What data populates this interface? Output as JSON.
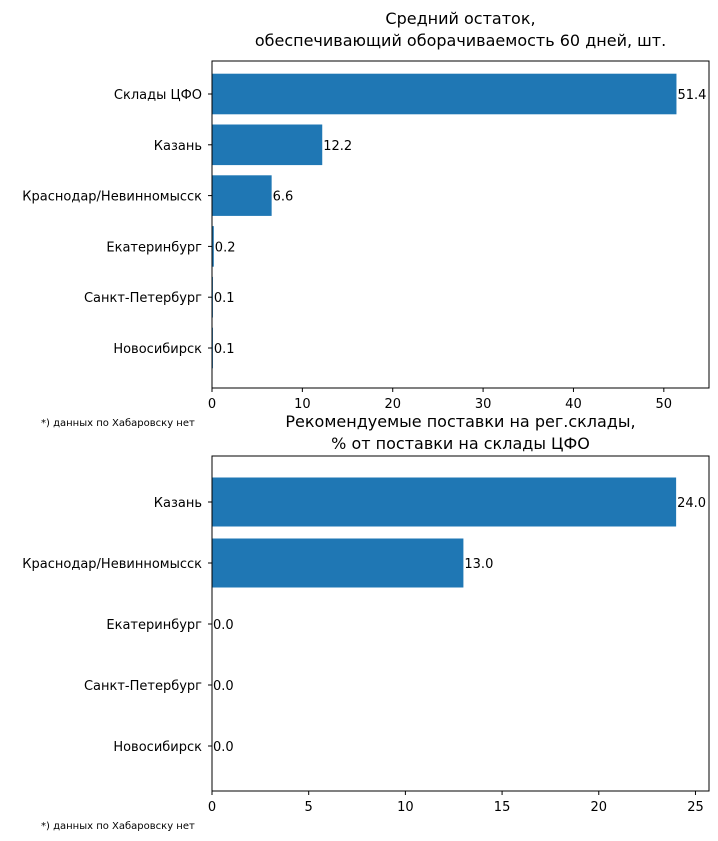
{
  "chart_data": [
    {
      "type": "bar",
      "orientation": "horizontal",
      "title": "Средний остаток,\nобеспечивающий оборачиваемость 60 дней, шт.",
      "categories": [
        "Склады ЦФО",
        "Казань",
        "Краснодар/Невинномысск",
        "Екатеринбург",
        "Санкт-Петербург",
        "Новосибирск"
      ],
      "values": [
        51.4,
        12.2,
        6.6,
        0.2,
        0.1,
        0.1
      ],
      "value_labels": [
        "51.4",
        "12.2",
        "6.6",
        "0.2",
        "0.1",
        "0.1"
      ],
      "xlim": [
        0,
        55
      ],
      "xticks": [
        0,
        10,
        20,
        30,
        40,
        50
      ],
      "color": "#1f77b4",
      "footnote": "*) данных по Хабаровску нет"
    },
    {
      "type": "bar",
      "orientation": "horizontal",
      "title": "Рекомендуемые поставки на рег.склады,\n% от поставки на склады ЦФО",
      "categories": [
        "Казань",
        "Краснодар/Невинномысск",
        "Екатеринбург",
        "Санкт-Петербург",
        "Новосибирск"
      ],
      "values": [
        24.0,
        13.0,
        0.0,
        0.0,
        0.0
      ],
      "value_labels": [
        "24.0",
        "13.0",
        "0.0",
        "0.0",
        "0.0"
      ],
      "xlim": [
        0,
        25.7
      ],
      "xticks": [
        0,
        5,
        10,
        15,
        20,
        25
      ],
      "color": "#1f77b4",
      "footnote": "*) данных по Хабаровску нет"
    }
  ]
}
